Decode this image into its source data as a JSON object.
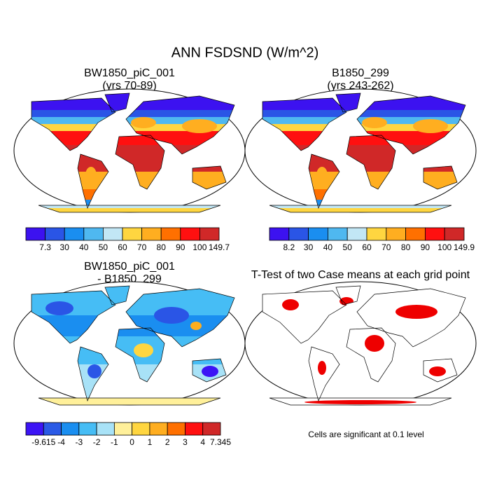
{
  "title": "ANN FSDSND (W/m^2)",
  "panels": [
    {
      "title": [
        "BW1850_piC_001",
        "(yrs 70-89)"
      ],
      "style": "field",
      "colorbar": {
        "labels": [
          "7.3",
          "30",
          "40",
          "50",
          "60",
          "70",
          "80",
          "90",
          "100",
          "149.7"
        ],
        "colors": [
          "#3c12f0",
          "#2a55e6",
          "#1a8ef0",
          "#4fb8f0",
          "#c2e7f5",
          "#ffd640",
          "#ffae20",
          "#ff7000",
          "#ff1010",
          "#d02828"
        ]
      }
    },
    {
      "title": [
        "B1850_299",
        "(yrs 243-262)"
      ],
      "style": "field",
      "colorbar": {
        "labels": [
          "8.2",
          "30",
          "40",
          "50",
          "60",
          "70",
          "80",
          "90",
          "100",
          "149.9"
        ],
        "colors": [
          "#3c12f0",
          "#2a55e6",
          "#1a8ef0",
          "#4fb8f0",
          "#c2e7f5",
          "#ffd640",
          "#ffae20",
          "#ff7000",
          "#ff1010",
          "#d02828"
        ]
      }
    },
    {
      "title": [
        "BW1850_piC_001",
        "- B1850_299"
      ],
      "style": "diff",
      "colorbar": {
        "labels": [
          "-9.615",
          "-4",
          "-3",
          "-2",
          "-1",
          "0",
          "1",
          "2",
          "3",
          "4",
          "7.345"
        ],
        "colors": [
          "#3c14f5",
          "#2a5ae6",
          "#1a8ef0",
          "#46bdf5",
          "#a8e2f7",
          "#fff09a",
          "#ffd640",
          "#ffae20",
          "#ff7000",
          "#ff1010",
          "#d02828"
        ]
      }
    },
    {
      "title": [
        "T-Test of two Case means at each grid point"
      ],
      "style": "ttest",
      "note": "Cells are significant at 0.1 level"
    }
  ]
}
